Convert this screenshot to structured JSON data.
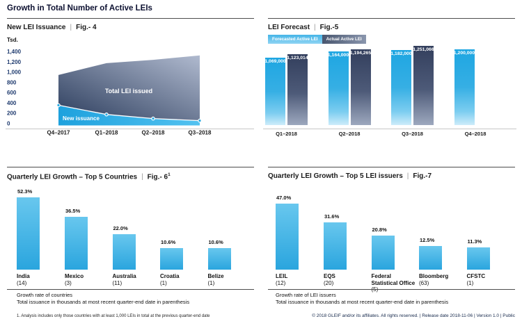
{
  "page": {
    "title": "Growth in Total Number of Active LEIs"
  },
  "ui": {
    "pipe": "|"
  },
  "colors": {
    "accent_cyan": "#29a9e0",
    "bar_cyan_top": "#68c7ee",
    "bar_cyan_bottom": "#2aa5de",
    "navy_dark": "#333f5d",
    "navy_light": "#9da8be",
    "area_dark_start": "#2b3c5c",
    "area_dark_end": "#b0bacf",
    "area_cyan_start": "#1ea1dd",
    "area_cyan_end": "#53c2f0",
    "tick_color": "#1e3a6e",
    "axis_line": "#c6c6c6",
    "footer_color": "#14274a"
  },
  "footer_text": "© 2018 GLEIF and/or its affiliates. All rights reserved.  |  Release date 2018-11-06  |  Version 1.0  |  Public",
  "chart_data": [
    {
      "id": "fig4",
      "type": "area",
      "title": "New LEI Issuance",
      "fig": "Fig.- 4",
      "unit_label": "Tsd.",
      "x": [
        "Q4–2017",
        "Q1–2018",
        "Q2–2018",
        "Q3–2018"
      ],
      "ylim": [
        0,
        1400
      ],
      "y_tick_values": [
        1400,
        1200,
        1000,
        800,
        600,
        400,
        200,
        0
      ],
      "y_ticks": [
        "1,400",
        "1,200",
        "1,000",
        "800",
        "600",
        "400",
        "200",
        "0"
      ],
      "grid": false,
      "series": [
        {
          "name": "Total LEI issued",
          "values": [
            950,
            1180,
            1245,
            1330
          ]
        },
        {
          "name": "New issuance",
          "values": [
            360,
            180,
            100,
            60
          ]
        }
      ]
    },
    {
      "id": "fig5",
      "type": "bar",
      "title": "LEI Forecast",
      "fig": "Fig.-5",
      "categories": [
        "Q1–2018",
        "Q2–2018",
        "Q3–2018",
        "Q4–2018"
      ],
      "ylim": [
        0,
        1251066
      ],
      "legend_position": "top-left",
      "series": [
        {
          "name": "Forecasted Active LEI",
          "values": [
            1069000,
            1164000,
            1182000,
            1200000
          ],
          "labels": [
            "1,069,000",
            "1,164,000",
            "1,182,000",
            "1,200,000"
          ]
        },
        {
          "name": "Actual Active LEI",
          "values": [
            1123014,
            1194265,
            1251066,
            null
          ],
          "labels": [
            "1,123,014",
            "1,194,265",
            "1,251,066",
            null
          ]
        }
      ]
    },
    {
      "id": "fig6",
      "type": "bar",
      "title": "Quarterly LEI Growth – Top 5 Countries",
      "fig": "Fig.- 6",
      "fig_sup": "1",
      "categories": [
        "India",
        "Mexico",
        "Australia",
        "Croatia",
        "Belize"
      ],
      "counts": [
        "(14)",
        "(3)",
        "(11)",
        "(1)",
        "(1)"
      ],
      "values": [
        52.3,
        36.5,
        22.0,
        10.6,
        10.6
      ],
      "value_labels": [
        "52.3%",
        "36.5%",
        "22.0%",
        "10.6%",
        "10.6%"
      ],
      "caption1": "Growth rate of countries",
      "caption2": "Total issuance in thousands at most recent quarter-end date in parenthesis",
      "footnote": "1. Analysis includes only those countries with at least 1,000 LEIs in total at the previous quarter-end date"
    },
    {
      "id": "fig7",
      "type": "bar",
      "title": "Quarterly LEI Growth – Top 5 LEI issuers",
      "fig": "Fig.-7",
      "categories": [
        "LEIL",
        "EQS",
        "Federal Statistical Office",
        "Bloomberg",
        "CFSTC"
      ],
      "counts": [
        "(12)",
        "(20)",
        "(5)",
        "(63)",
        "(1)"
      ],
      "values": [
        47.0,
        31.6,
        20.8,
        12.5,
        11.3
      ],
      "value_labels": [
        "47.0%",
        "31.6%",
        "20.8%",
        "12.5%",
        "11.3%"
      ],
      "caption1": "Growth rate of LEI issuers",
      "caption2": "Total issuance in thousands at most recent quarter-end date in parenthesis"
    }
  ]
}
